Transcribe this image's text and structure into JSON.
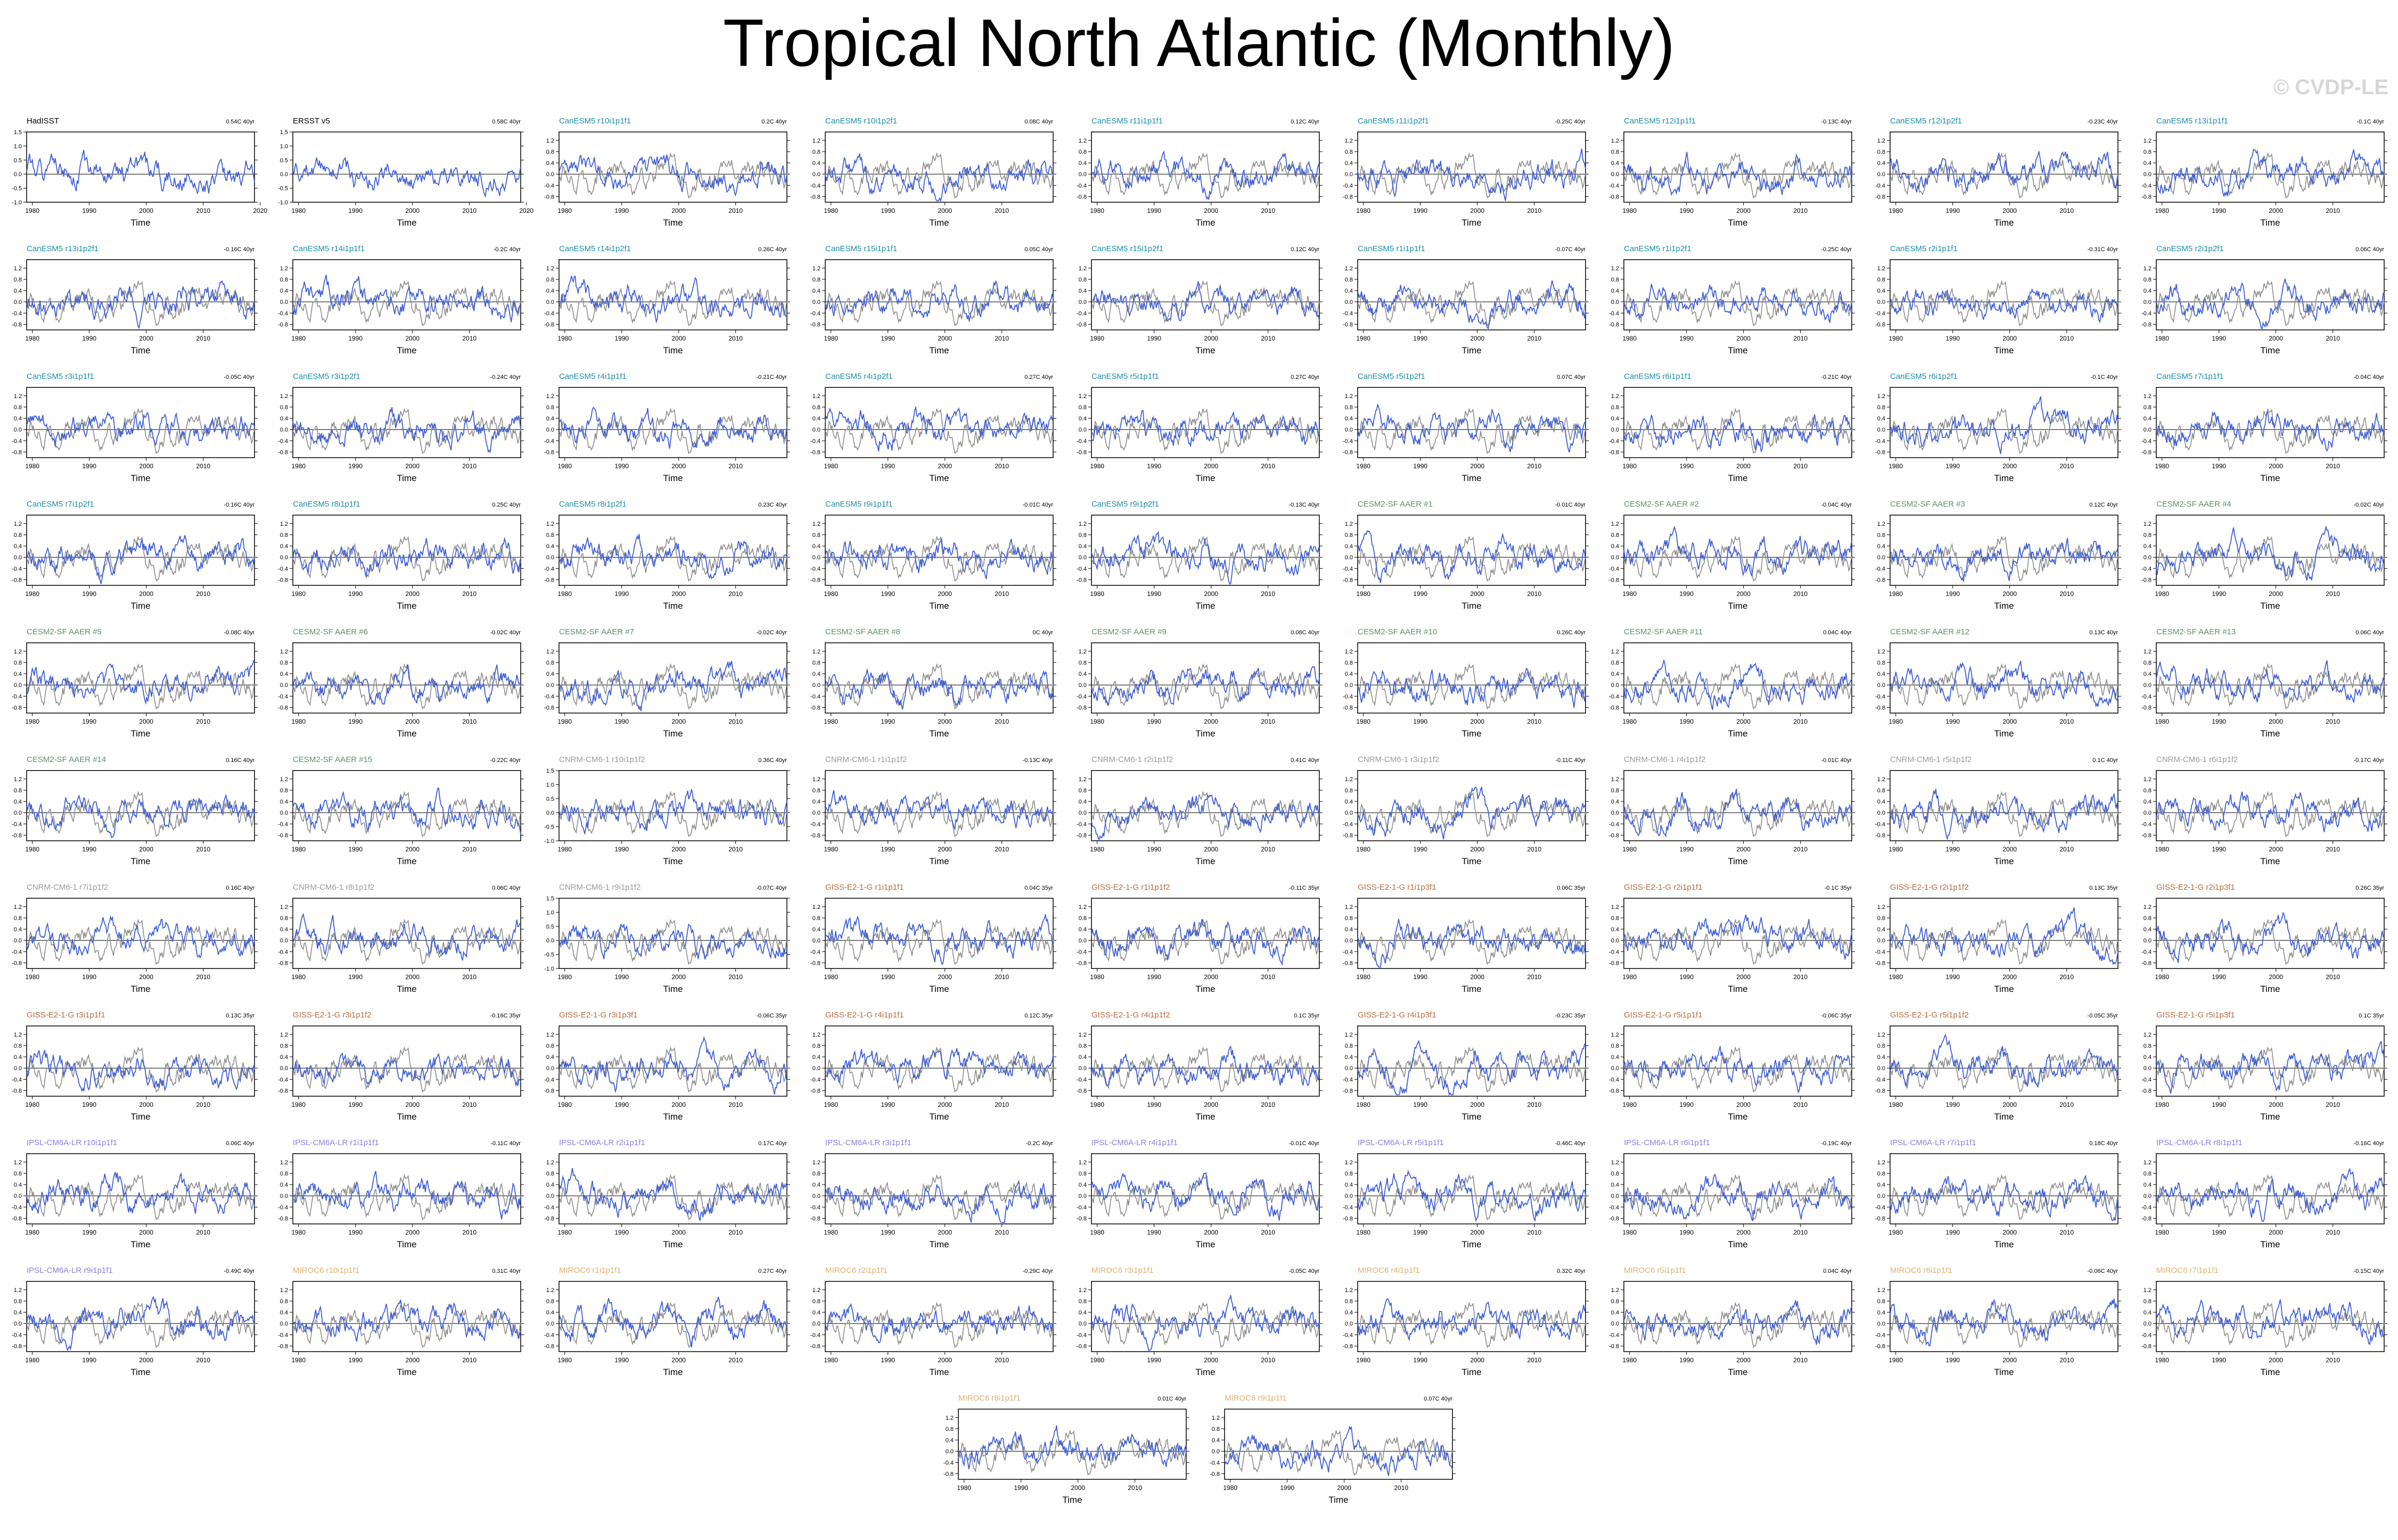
{
  "title": "Tropical North Atlantic (Monthly)",
  "watermark": "© CVDP-LE",
  "shared_axes": {
    "x_ticks": [
      1980,
      1990,
      2000,
      2010
    ],
    "x_label": "Time",
    "x_range": [
      1979,
      2019
    ],
    "y_range_default": [
      -1.0,
      1.5
    ],
    "y_ticks_default": [
      "1.2",
      "0.8",
      "0.4",
      "0.0",
      "-0.4",
      "-0.8"
    ]
  },
  "colors": {
    "model_line": "#3f5fd6",
    "obs_line": "#8c8c8c",
    "zero_line": "#000000",
    "CanESM5": "#1a8fa8",
    "CESM2-SF AAER": "#5e8e6e",
    "CNRM-CM6-1": "#9a9a9a",
    "GISS-E2-1-G": "#b86a3c",
    "IPSL-CM6A-LR": "#8a7fe0",
    "MIROC6": "#e0b070"
  },
  "chart_data": [
    {
      "type": "line",
      "title": "HadISST",
      "group": "obs",
      "trend": "0.54C 40yr",
      "yticks": [
        "1.5",
        "1.0",
        "0.5",
        "0.0",
        "-0.5",
        "-1.0"
      ],
      "xticks": [
        1980,
        1990,
        2000,
        2010,
        2020
      ],
      "seed": 1
    },
    {
      "type": "line",
      "title": "ERSST v5",
      "group": "obs",
      "trend": "0.58C 40yr",
      "yticks": [
        "1.5",
        "1.0",
        "0.5",
        "0.0",
        "-0.5",
        "-1.0"
      ],
      "xticks": [
        1980,
        1990,
        2000,
        2010,
        2020
      ],
      "seed": 2
    },
    {
      "type": "line",
      "title": "CanESM5 r10i1p1f1",
      "group": "CanESM5",
      "trend": "0.2C 40yr",
      "seed": 3
    },
    {
      "type": "line",
      "title": "CanESM5 r10i1p2f1",
      "group": "CanESM5",
      "trend": "0.08C 40yr",
      "seed": 4
    },
    {
      "type": "line",
      "title": "CanESM5 r11i1p1f1",
      "group": "CanESM5",
      "trend": "0.12C 40yr",
      "seed": 5
    },
    {
      "type": "line",
      "title": "CanESM5 r11i1p2f1",
      "group": "CanESM5",
      "trend": "-0.25C 40yr",
      "seed": 6
    },
    {
      "type": "line",
      "title": "CanESM5 r12i1p1f1",
      "group": "CanESM5",
      "trend": "-0.13C 40yr",
      "seed": 7
    },
    {
      "type": "line",
      "title": "CanESM5 r12i1p2f1",
      "group": "CanESM5",
      "trend": "-0.23C 40yr",
      "seed": 8
    },
    {
      "type": "line",
      "title": "CanESM5 r13i1p1f1",
      "group": "CanESM5",
      "trend": "-0.1C 40yr",
      "seed": 9
    },
    {
      "type": "line",
      "title": "CanESM5 r13i1p2f1",
      "group": "CanESM5",
      "trend": "-0.16C 40yr",
      "seed": 10
    },
    {
      "type": "line",
      "title": "CanESM5 r14i1p1f1",
      "group": "CanESM5",
      "trend": "-0.2C 40yr",
      "seed": 11
    },
    {
      "type": "line",
      "title": "CanESM5 r14i1p2f1",
      "group": "CanESM5",
      "trend": "0.26C 40yr",
      "seed": 12
    },
    {
      "type": "line",
      "title": "CanESM5 r15i1p1f1",
      "group": "CanESM5",
      "trend": "0.05C 40yr",
      "seed": 13
    },
    {
      "type": "line",
      "title": "CanESM5 r15i1p2f1",
      "group": "CanESM5",
      "trend": "0.12C 40yr",
      "seed": 14
    },
    {
      "type": "line",
      "title": "CanESM5 r1i1p1f1",
      "group": "CanESM5",
      "trend": "-0.07C 40yr",
      "seed": 15
    },
    {
      "type": "line",
      "title": "CanESM5 r1i1p2f1",
      "group": "CanESM5",
      "trend": "-0.25C 40yr",
      "seed": 16
    },
    {
      "type": "line",
      "title": "CanESM5 r2i1p1f1",
      "group": "CanESM5",
      "trend": "-0.31C 40yr",
      "seed": 17
    },
    {
      "type": "line",
      "title": "CanESM5 r2i1p2f1",
      "group": "CanESM5",
      "trend": "0.06C 40yr",
      "seed": 18
    },
    {
      "type": "line",
      "title": "CanESM5 r3i1p1f1",
      "group": "CanESM5",
      "trend": "-0.05C 40yr",
      "seed": 19
    },
    {
      "type": "line",
      "title": "CanESM5 r3i1p2f1",
      "group": "CanESM5",
      "trend": "-0.24C 40yr",
      "seed": 20
    },
    {
      "type": "line",
      "title": "CanESM5 r4i1p1f1",
      "group": "CanESM5",
      "trend": "-0.21C 40yr",
      "seed": 21
    },
    {
      "type": "line",
      "title": "CanESM5 r4i1p2f1",
      "group": "CanESM5",
      "trend": "0.27C 40yr",
      "seed": 22
    },
    {
      "type": "line",
      "title": "CanESM5 r5i1p1f1",
      "group": "CanESM5",
      "trend": "0.27C 40yr",
      "seed": 23
    },
    {
      "type": "line",
      "title": "CanESM5 r5i1p2f1",
      "group": "CanESM5",
      "trend": "0.07C 40yr",
      "seed": 24
    },
    {
      "type": "line",
      "title": "CanESM5 r6i1p1f1",
      "group": "CanESM5",
      "trend": "-0.21C 40yr",
      "seed": 25
    },
    {
      "type": "line",
      "title": "CanESM5 r6i1p2f1",
      "group": "CanESM5",
      "trend": "-0.1C 40yr",
      "seed": 26
    },
    {
      "type": "line",
      "title": "CanESM5 r7i1p1f1",
      "group": "CanESM5",
      "trend": "-0.04C 40yr",
      "seed": 27
    },
    {
      "type": "line",
      "title": "CanESM5 r7i1p2f1",
      "group": "CanESM5",
      "trend": "-0.16C 40yr",
      "seed": 28
    },
    {
      "type": "line",
      "title": "CanESM5 r8i1p1f1",
      "group": "CanESM5",
      "trend": "0.25C 40yr",
      "seed": 29
    },
    {
      "type": "line",
      "title": "CanESM5 r8i1p2f1",
      "group": "CanESM5",
      "trend": "0.23C 40yr",
      "seed": 30
    },
    {
      "type": "line",
      "title": "CanESM5 r9i1p1f1",
      "group": "CanESM5",
      "trend": "-0.01C 40yr",
      "seed": 31
    },
    {
      "type": "line",
      "title": "CanESM5 r9i1p2f1",
      "group": "CanESM5",
      "trend": "-0.13C 40yr",
      "seed": 32
    },
    {
      "type": "line",
      "title": "CESM2-SF AAER #1",
      "group": "CESM2-SF AAER",
      "trend": "-0.01C 40yr",
      "seed": 33
    },
    {
      "type": "line",
      "title": "CESM2-SF AAER #2",
      "group": "CESM2-SF AAER",
      "trend": "-0.04C 40yr",
      "seed": 34
    },
    {
      "type": "line",
      "title": "CESM2-SF AAER #3",
      "group": "CESM2-SF AAER",
      "trend": "0.12C 40yr",
      "seed": 35
    },
    {
      "type": "line",
      "title": "CESM2-SF AAER #4",
      "group": "CESM2-SF AAER",
      "trend": "-0.02C 40yr",
      "seed": 36
    },
    {
      "type": "line",
      "title": "CESM2-SF AAER #5",
      "group": "CESM2-SF AAER",
      "trend": "-0.08C 40yr",
      "seed": 37
    },
    {
      "type": "line",
      "title": "CESM2-SF AAER #6",
      "group": "CESM2-SF AAER",
      "trend": "-0.02C 40yr",
      "seed": 38
    },
    {
      "type": "line",
      "title": "CESM2-SF AAER #7",
      "group": "CESM2-SF AAER",
      "trend": "-0.02C 40yr",
      "seed": 39
    },
    {
      "type": "line",
      "title": "CESM2-SF AAER #8",
      "group": "CESM2-SF AAER",
      "trend": "0C 40yr",
      "seed": 40
    },
    {
      "type": "line",
      "title": "CESM2-SF AAER #9",
      "group": "CESM2-SF AAER",
      "trend": "0.08C 40yr",
      "seed": 41
    },
    {
      "type": "line",
      "title": "CESM2-SF AAER #10",
      "group": "CESM2-SF AAER",
      "trend": "0.26C 40yr",
      "seed": 42
    },
    {
      "type": "line",
      "title": "CESM2-SF AAER #11",
      "group": "CESM2-SF AAER",
      "trend": "0.04C 40yr",
      "seed": 43
    },
    {
      "type": "line",
      "title": "CESM2-SF AAER #12",
      "group": "CESM2-SF AAER",
      "trend": "0.13C 40yr",
      "seed": 44
    },
    {
      "type": "line",
      "title": "CESM2-SF AAER #13",
      "group": "CESM2-SF AAER",
      "trend": "0.06C 40yr",
      "seed": 45
    },
    {
      "type": "line",
      "title": "CESM2-SF AAER #14",
      "group": "CESM2-SF AAER",
      "trend": "0.16C 40yr",
      "seed": 46
    },
    {
      "type": "line",
      "title": "CESM2-SF AAER #15",
      "group": "CESM2-SF AAER",
      "trend": "-0.22C 40yr",
      "seed": 47
    },
    {
      "type": "line",
      "title": "CNRM-CM6-1 r10i1p1f2",
      "group": "CNRM-CM6-1",
      "trend": "0.36C 40yr",
      "yticks": [
        "1.5",
        "1.0",
        "0.5",
        "0.0",
        "-0.5",
        "-1.0"
      ],
      "seed": 48
    },
    {
      "type": "line",
      "title": "CNRM-CM6-1 r1i1p1f2",
      "group": "CNRM-CM6-1",
      "trend": "-0.13C 40yr",
      "seed": 49
    },
    {
      "type": "line",
      "title": "CNRM-CM6-1 r2i1p1f2",
      "group": "CNRM-CM6-1",
      "trend": "0.41C 40yr",
      "seed": 50
    },
    {
      "type": "line",
      "title": "CNRM-CM6-1 r3i1p1f2",
      "group": "CNRM-CM6-1",
      "trend": "-0.11C 40yr",
      "seed": 51
    },
    {
      "type": "line",
      "title": "CNRM-CM6-1 r4i1p1f2",
      "group": "CNRM-CM6-1",
      "trend": "-0.01C 40yr",
      "seed": 52
    },
    {
      "type": "line",
      "title": "CNRM-CM6-1 r5i1p1f2",
      "group": "CNRM-CM6-1",
      "trend": "0.1C 40yr",
      "seed": 53
    },
    {
      "type": "line",
      "title": "CNRM-CM6-1 r6i1p1f2",
      "group": "CNRM-CM6-1",
      "trend": "-0.17C 40yr",
      "seed": 54
    },
    {
      "type": "line",
      "title": "CNRM-CM6-1 r7i1p1f2",
      "group": "CNRM-CM6-1",
      "trend": "0.16C 40yr",
      "seed": 55
    },
    {
      "type": "line",
      "title": "CNRM-CM6-1 r8i1p1f2",
      "group": "CNRM-CM6-1",
      "trend": "0.06C 40yr",
      "seed": 56
    },
    {
      "type": "line",
      "title": "CNRM-CM6-1 r9i1p1f2",
      "group": "CNRM-CM6-1",
      "trend": "-0.07C 40yr",
      "yticks": [
        "1.5",
        "1.0",
        "0.5",
        "0.0",
        "-0.5",
        "-1.0"
      ],
      "seed": 57
    },
    {
      "type": "line",
      "title": "GISS-E2-1-G r1i1p1f1",
      "group": "GISS-E2-1-G",
      "trend": "0.04C 35yr",
      "seed": 58
    },
    {
      "type": "line",
      "title": "GISS-E2-1-G r1i1p1f2",
      "group": "GISS-E2-1-G",
      "trend": "-0.11C 35yr",
      "seed": 59
    },
    {
      "type": "line",
      "title": "GISS-E2-1-G r1i1p3f1",
      "group": "GISS-E2-1-G",
      "trend": "0.06C 35yr",
      "seed": 60
    },
    {
      "type": "line",
      "title": "GISS-E2-1-G r2i1p1f1",
      "group": "GISS-E2-1-G",
      "trend": "-0.1C 35yr",
      "seed": 61
    },
    {
      "type": "line",
      "title": "GISS-E2-1-G r2i1p1f2",
      "group": "GISS-E2-1-G",
      "trend": "0.13C 35yr",
      "seed": 62
    },
    {
      "type": "line",
      "title": "GISS-E2-1-G r2i1p3f1",
      "group": "GISS-E2-1-G",
      "trend": "0.26C 35yr",
      "seed": 63
    },
    {
      "type": "line",
      "title": "GISS-E2-1-G r3i1p1f1",
      "group": "GISS-E2-1-G",
      "trend": "0.13C 35yr",
      "seed": 64
    },
    {
      "type": "line",
      "title": "GISS-E2-1-G r3i1p1f2",
      "group": "GISS-E2-1-G",
      "trend": "-0.16C 35yr",
      "seed": 65
    },
    {
      "type": "line",
      "title": "GISS-E2-1-G r3i1p3f1",
      "group": "GISS-E2-1-G",
      "trend": "-0.06C 35yr",
      "seed": 66
    },
    {
      "type": "line",
      "title": "GISS-E2-1-G r4i1p1f1",
      "group": "GISS-E2-1-G",
      "trend": "0.12C 35yr",
      "seed": 67
    },
    {
      "type": "line",
      "title": "GISS-E2-1-G r4i1p1f2",
      "group": "GISS-E2-1-G",
      "trend": "0.1C 35yr",
      "seed": 68
    },
    {
      "type": "line",
      "title": "GISS-E2-1-G r4i1p3f1",
      "group": "GISS-E2-1-G",
      "trend": "-0.23C 35yr",
      "seed": 69
    },
    {
      "type": "line",
      "title": "GISS-E2-1-G r5i1p1f1",
      "group": "GISS-E2-1-G",
      "trend": "-0.06C 35yr",
      "seed": 70
    },
    {
      "type": "line",
      "title": "GISS-E2-1-G r5i1p1f2",
      "group": "GISS-E2-1-G",
      "trend": "-0.05C 35yr",
      "seed": 71
    },
    {
      "type": "line",
      "title": "GISS-E2-1-G r5i1p3f1",
      "group": "GISS-E2-1-G",
      "trend": "0.1C 35yr",
      "seed": 72
    },
    {
      "type": "line",
      "title": "IPSL-CM6A-LR r10i1p1f1",
      "group": "IPSL-CM6A-LR",
      "trend": "0.06C 40yr",
      "seed": 73
    },
    {
      "type": "line",
      "title": "IPSL-CM6A-LR r1i1p1f1",
      "group": "IPSL-CM6A-LR",
      "trend": "-0.11C 40yr",
      "seed": 74
    },
    {
      "type": "line",
      "title": "IPSL-CM6A-LR r2i1p1f1",
      "group": "IPSL-CM6A-LR",
      "trend": "0.17C 40yr",
      "seed": 75
    },
    {
      "type": "line",
      "title": "IPSL-CM6A-LR r3i1p1f1",
      "group": "IPSL-CM6A-LR",
      "trend": "-0.2C 40yr",
      "seed": 76
    },
    {
      "type": "line",
      "title": "IPSL-CM6A-LR r4i1p1f1",
      "group": "IPSL-CM6A-LR",
      "trend": "-0.01C 40yr",
      "seed": 77
    },
    {
      "type": "line",
      "title": "IPSL-CM6A-LR r5i1p1f1",
      "group": "IPSL-CM6A-LR",
      "trend": "-0.46C 40yr",
      "seed": 78
    },
    {
      "type": "line",
      "title": "IPSL-CM6A-LR r6i1p1f1",
      "group": "IPSL-CM6A-LR",
      "trend": "-0.19C 40yr",
      "seed": 79
    },
    {
      "type": "line",
      "title": "IPSL-CM6A-LR r7i1p1f1",
      "group": "IPSL-CM6A-LR",
      "trend": "0.18C 40yr",
      "seed": 80
    },
    {
      "type": "line",
      "title": "IPSL-CM6A-LR r8i1p1f1",
      "group": "IPSL-CM6A-LR",
      "trend": "-0.16C 40yr",
      "seed": 81
    },
    {
      "type": "line",
      "title": "IPSL-CM6A-LR r9i1p1f1",
      "group": "IPSL-CM6A-LR",
      "trend": "-0.49C 40yr",
      "seed": 82
    },
    {
      "type": "line",
      "title": "MIROC6 r10i1p1f1",
      "group": "MIROC6",
      "trend": "0.31C 40yr",
      "seed": 83
    },
    {
      "type": "line",
      "title": "MIROC6 r1i1p1f1",
      "group": "MIROC6",
      "trend": "0.27C 40yr",
      "seed": 84
    },
    {
      "type": "line",
      "title": "MIROC6 r2i1p1f1",
      "group": "MIROC6",
      "trend": "-0.29C 40yr",
      "seed": 85
    },
    {
      "type": "line",
      "title": "MIROC6 r3i1p1f1",
      "group": "MIROC6",
      "trend": "-0.05C 40yr",
      "seed": 86
    },
    {
      "type": "line",
      "title": "MIROC6 r4i1p1f1",
      "group": "MIROC6",
      "trend": "0.32C 40yr",
      "seed": 87
    },
    {
      "type": "line",
      "title": "MIROC6 r5i1p1f1",
      "group": "MIROC6",
      "trend": "0.04C 40yr",
      "seed": 88
    },
    {
      "type": "line",
      "title": "MIROC6 r6i1p1f1",
      "group": "MIROC6",
      "trend": "-0.06C 40yr",
      "seed": 89
    },
    {
      "type": "line",
      "title": "MIROC6 r7i1p1f1",
      "group": "MIROC6",
      "trend": "-0.15C 40yr",
      "seed": 90
    },
    {
      "type": "line",
      "title": "MIROC6 r8i1p1f1",
      "group": "MIROC6",
      "trend": "0.01C 40yr",
      "seed": 91
    },
    {
      "type": "line",
      "title": "MIROC6 r9i1p1f1",
      "group": "MIROC6",
      "trend": "0.07C 40yr",
      "seed": 92
    }
  ]
}
